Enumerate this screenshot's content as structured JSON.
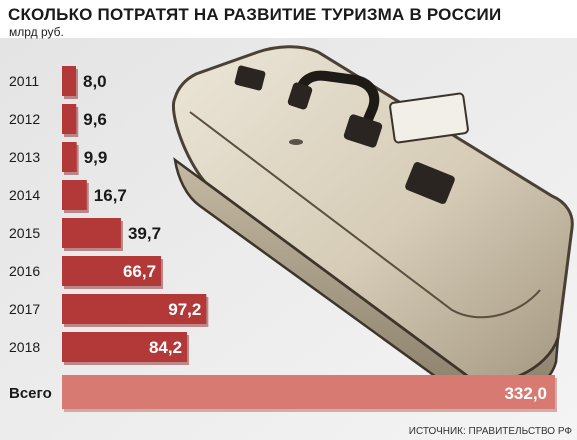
{
  "chart_data": {
    "type": "bar",
    "orientation": "horizontal",
    "title": "СКОЛЬКО ПОТРАТЯТ НА РАЗВИТИЕ ТУРИЗМА В РОССИИ",
    "unit": "млрд руб.",
    "categories": [
      "2011",
      "2012",
      "2013",
      "2014",
      "2015",
      "2016",
      "2017",
      "2018"
    ],
    "values": [
      8.0,
      9.6,
      9.9,
      16.7,
      39.7,
      66.7,
      97.2,
      84.2
    ],
    "value_labels": [
      "8,0",
      "9,6",
      "9,9",
      "16,7",
      "39,7",
      "66,7",
      "97,2",
      "84,2"
    ],
    "total_label": "Всего",
    "total_value": 332.0,
    "total_value_label": "332,0",
    "bar_color": "#b33838",
    "total_bar_color": "#d77a72",
    "grid": false,
    "legend": "none"
  },
  "source": "ИСТОЧНИК: ПРАВИТЕЛЬСТВО РФ",
  "illustration": "suitcase-photo"
}
